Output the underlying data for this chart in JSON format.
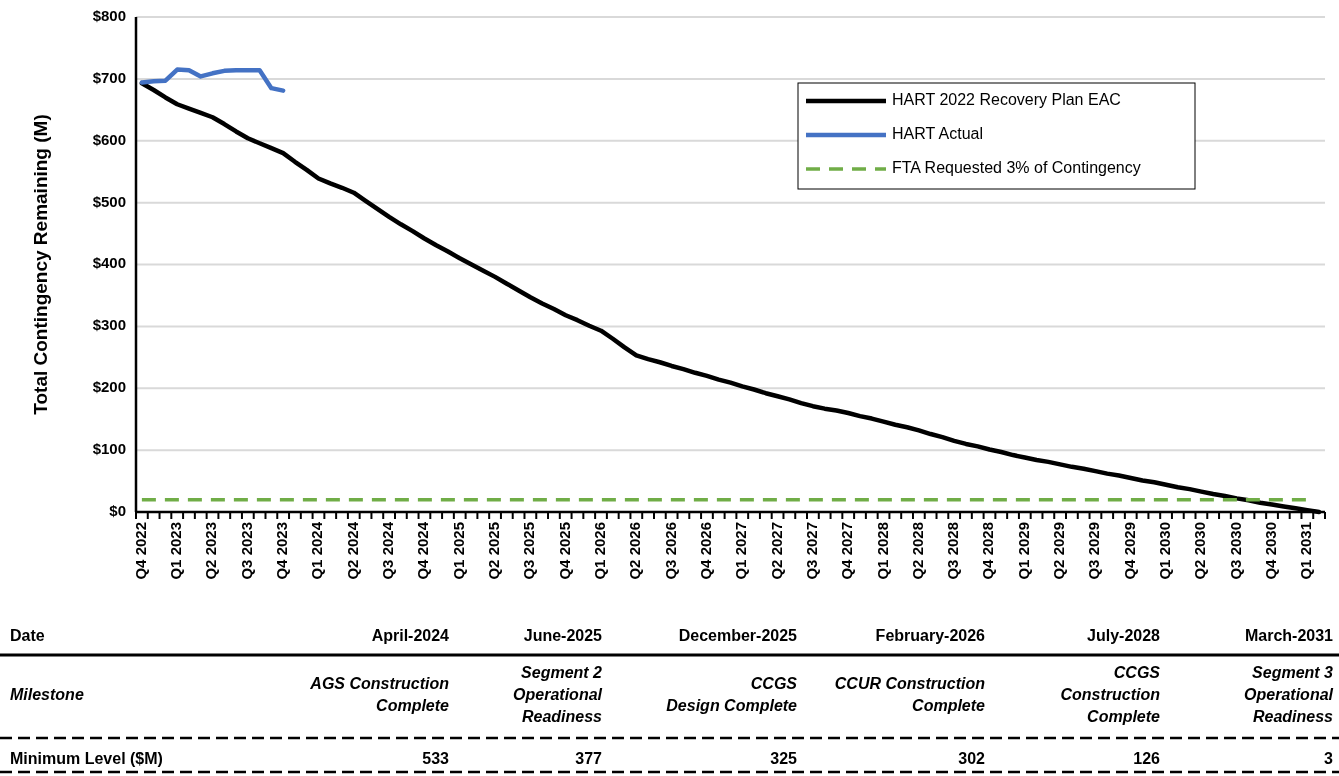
{
  "chart_data": {
    "type": "line",
    "ylabel": "Total Contingency Remaining (M)",
    "categories": [
      "Q4 2022",
      null,
      null,
      "Q1 2023",
      null,
      null,
      "Q2 2023",
      null,
      null,
      "Q3 2023",
      null,
      null,
      "Q4 2023",
      null,
      null,
      "Q1 2024",
      null,
      null,
      "Q2 2024",
      null,
      null,
      "Q3 2024",
      null,
      null,
      "Q4 2024",
      null,
      null,
      "Q1 2025",
      null,
      null,
      "Q2 2025",
      null,
      null,
      "Q3 2025",
      null,
      null,
      "Q4 2025",
      null,
      null,
      "Q1 2026",
      null,
      null,
      "Q2 2026",
      null,
      null,
      "Q3 2026",
      null,
      null,
      "Q4 2026",
      null,
      null,
      "Q1 2027",
      null,
      null,
      "Q2 2027",
      null,
      null,
      "Q3 2027",
      null,
      null,
      "Q4 2027",
      null,
      null,
      "Q1 2028",
      null,
      null,
      "Q2 2028",
      null,
      null,
      "Q3 2028",
      null,
      null,
      "Q4 2028",
      null,
      null,
      "Q1 2029",
      null,
      null,
      "Q2 2029",
      null,
      null,
      "Q3 2029",
      null,
      null,
      "Q4 2029",
      null,
      null,
      "Q1 2030",
      null,
      null,
      "Q2 2030",
      null,
      null,
      "Q3 2030",
      null,
      null,
      "Q4 2030",
      null,
      null,
      "Q1 2031",
      null
    ],
    "ylim": [
      0,
      800
    ],
    "yticks": [
      {
        "value": 0,
        "label": "$0"
      },
      {
        "value": 100,
        "label": "$100"
      },
      {
        "value": 200,
        "label": "$200"
      },
      {
        "value": 300,
        "label": "$300"
      },
      {
        "value": 400,
        "label": "$400"
      },
      {
        "value": 500,
        "label": "$500"
      },
      {
        "value": 600,
        "label": "$600"
      },
      {
        "value": 700,
        "label": "$700"
      },
      {
        "value": 800,
        "label": "$800"
      }
    ],
    "grid": "y",
    "legend": "top right",
    "series": [
      {
        "name": "HART 2022 Recovery Plan EAC",
        "color": "#000000",
        "line_style": "solid",
        "values": [
          693,
          682,
          670,
          659,
          652,
          645,
          638,
          627,
          615,
          604,
          596,
          588,
          580,
          566,
          553,
          539,
          531,
          524,
          516,
          503,
          490,
          477,
          465,
          454,
          442,
          431,
          421,
          410,
          400,
          390,
          380,
          369,
          358,
          347,
          337,
          328,
          318,
          310,
          301,
          293,
          280,
          266,
          253,
          247,
          242,
          236,
          231,
          225,
          220,
          214,
          209,
          203,
          198,
          192,
          187,
          182,
          176,
          171,
          167,
          164,
          160,
          155,
          151,
          146,
          141,
          137,
          132,
          126,
          121,
          115,
          110,
          106,
          101,
          97,
          92,
          88,
          84,
          81,
          77,
          73,
          70,
          66,
          62,
          59,
          55,
          51,
          48,
          44,
          40,
          37,
          33,
          29,
          26,
          22,
          19,
          15,
          12,
          9,
          6,
          3,
          0
        ]
      },
      {
        "name": "HART Actual",
        "color": "#4472c4",
        "line_style": "solid",
        "values": [
          694,
          696,
          697,
          715,
          714,
          704,
          709,
          713,
          714,
          714,
          714,
          685,
          681,
          null,
          null,
          null,
          null,
          null,
          null,
          null,
          null,
          null,
          null,
          null,
          null,
          null,
          null,
          null,
          null,
          null,
          null,
          null,
          null,
          null,
          null,
          null,
          null,
          null,
          null,
          null,
          null,
          null,
          null,
          null,
          null,
          null,
          null,
          null,
          null,
          null,
          null,
          null,
          null,
          null,
          null,
          null,
          null,
          null,
          null,
          null,
          null,
          null,
          null,
          null,
          null,
          null,
          null,
          null,
          null,
          null,
          null,
          null,
          null,
          null,
          null,
          null,
          null,
          null,
          null,
          null,
          null,
          null,
          null,
          null,
          null,
          null,
          null,
          null,
          null,
          null,
          null,
          null,
          null,
          null,
          null,
          null,
          null,
          null,
          null,
          null,
          null
        ]
      },
      {
        "name": "FTA Requested 3% of Contingency",
        "color": "#70ad47",
        "line_style": "dashed",
        "values": [
          20,
          20,
          20,
          20,
          20,
          20,
          20,
          20,
          20,
          20,
          20,
          20,
          20,
          20,
          20,
          20,
          20,
          20,
          20,
          20,
          20,
          20,
          20,
          20,
          20,
          20,
          20,
          20,
          20,
          20,
          20,
          20,
          20,
          20,
          20,
          20,
          20,
          20,
          20,
          20,
          20,
          20,
          20,
          20,
          20,
          20,
          20,
          20,
          20,
          20,
          20,
          20,
          20,
          20,
          20,
          20,
          20,
          20,
          20,
          20,
          20,
          20,
          20,
          20,
          20,
          20,
          20,
          20,
          20,
          20,
          20,
          20,
          20,
          20,
          20,
          20,
          20,
          20,
          20,
          20,
          20,
          20,
          20,
          20,
          20,
          20,
          20,
          20,
          20,
          20,
          20,
          20,
          20,
          20,
          20,
          20,
          20,
          20,
          20,
          20,
          null
        ]
      }
    ],
    "annotations": [
      "Date",
      "April-2024",
      "June-2025",
      "December-2025",
      "February-2026",
      "July-2028",
      "March-2031",
      "Milestone",
      "AGS Construction\nComplete",
      "Segment 2\nOperational\nReadiness",
      "CCGS\nDesign Complete",
      "CCUR Construction\nComplete",
      "CCGS\nConstruction\nComplete",
      "Segment 3\nOperational\nReadiness",
      "Minimum Level ($M)",
      "533",
      "377",
      "325",
      "302",
      "126",
      "3"
    ]
  }
}
